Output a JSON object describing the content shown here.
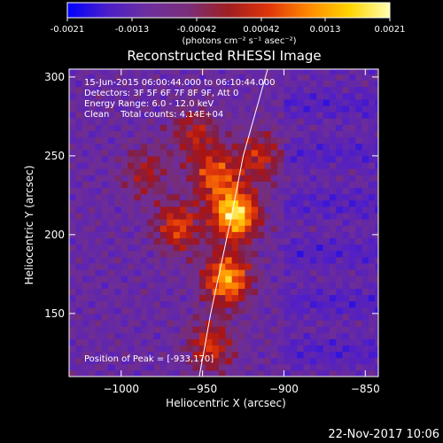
{
  "colorbar": {
    "ticks": [
      "-0.0021",
      "-0.0013",
      "-0.00042",
      "0.00042",
      "0.0013",
      "0.0021"
    ],
    "units": "(photons cm⁻² s⁻¹ asec⁻²)",
    "stops": [
      "#0000ff",
      "#4b1fc8",
      "#6e2f9e",
      "#7a2f7a",
      "#a01e20",
      "#e0350a",
      "#ff8a00",
      "#ffd400",
      "#ffffb0"
    ]
  },
  "chart_data": {
    "type": "heatmap",
    "title": "Reconstructed RHESSI Image",
    "xlabel": "Heliocentric X (arcsec)",
    "ylabel": "Heliocentric Y (arcsec)",
    "xlim": [
      -1032,
      -842
    ],
    "ylim": [
      110,
      305
    ],
    "x_ticks": [
      -1000,
      -950,
      -900,
      -850
    ],
    "x_tick_labels": [
      "−1000",
      "−950",
      "−900",
      "−850"
    ],
    "y_ticks": [
      150,
      200,
      250,
      300
    ],
    "y_tick_labels": [
      "150",
      "200",
      "250",
      "300"
    ],
    "annotations": [
      "15-Jun-2015 06:00:44.000 to 06:10:44.000",
      "Detectors: 3F 5F 6F 7F 8F 9F, Att 0",
      "Energy Range: 6.0 - 12.0 keV",
      "Clean    Total counts: 4.14E+04"
    ],
    "peak_label": "Position of Peak = [-933,170]",
    "peak": [
      -933,
      170
    ],
    "value_range": [
      -0.0021,
      0.0021
    ],
    "sources": [
      {
        "x": -930,
        "y": 213,
        "amp": 1.0
      },
      {
        "x": -935,
        "y": 172,
        "amp": 0.85
      },
      {
        "x": -942,
        "y": 238,
        "amp": 0.6
      },
      {
        "x": -965,
        "y": 205,
        "amp": 0.55
      },
      {
        "x": -915,
        "y": 250,
        "amp": 0.45
      },
      {
        "x": -955,
        "y": 265,
        "amp": 0.4
      },
      {
        "x": -985,
        "y": 240,
        "amp": 0.35
      },
      {
        "x": -945,
        "y": 130,
        "amp": 0.5
      }
    ],
    "limb_points": [
      [
        -910,
        305
      ],
      [
        -925,
        250
      ],
      [
        -932,
        213
      ],
      [
        -945,
        150
      ],
      [
        -952,
        110
      ]
    ]
  },
  "footer": {
    "date": "22-Nov-2017 10:06"
  }
}
